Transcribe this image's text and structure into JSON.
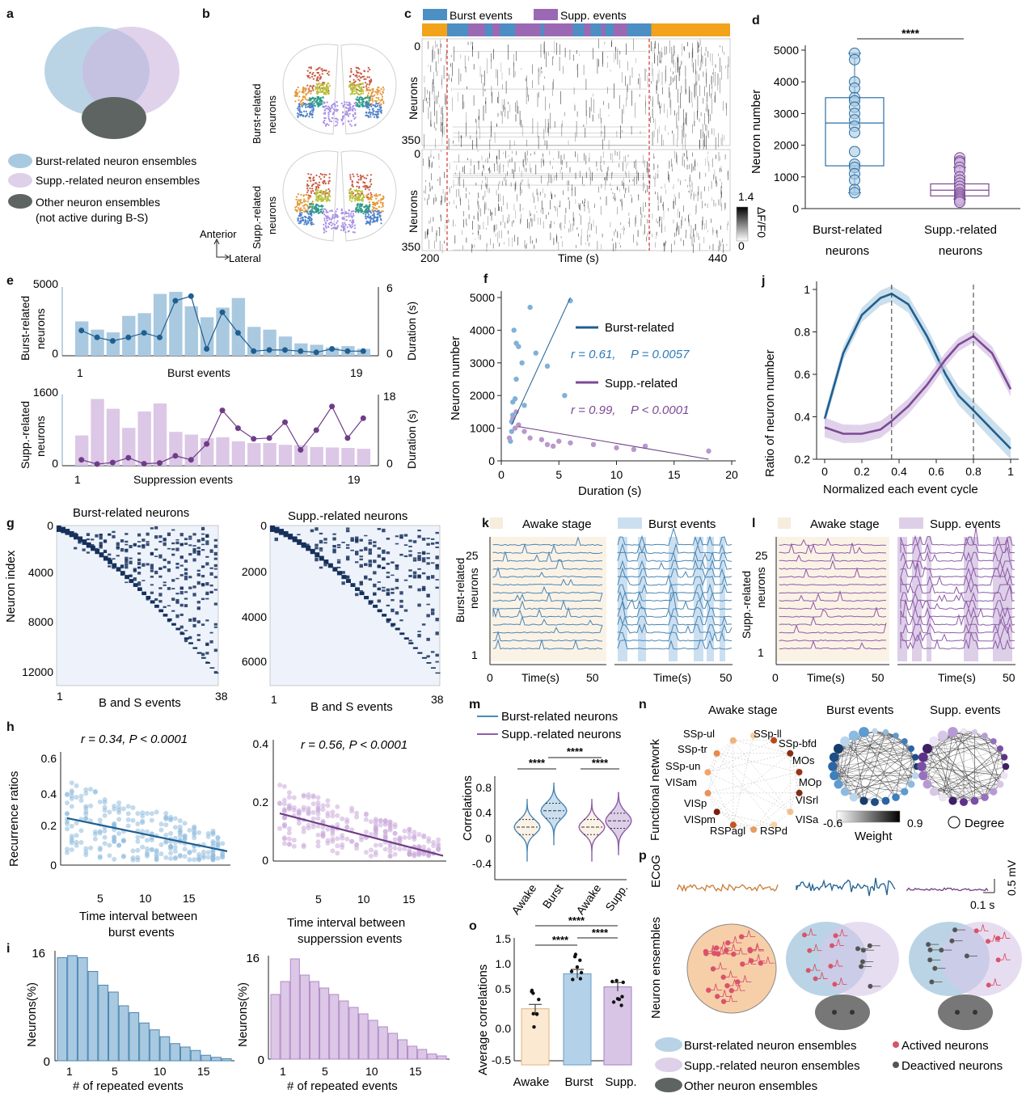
{
  "colors": {
    "burst": "#2c6fa6",
    "burst_light": "#a9c9e0",
    "supp": "#7b4a94",
    "supp_light": "#cdb4dd",
    "awake": "#f1ddc3",
    "awake_line": "#c97d35",
    "other": "#5d6462",
    "navy": "#14305a",
    "orange_bar": "#f2a31b",
    "red_dash": "#d6332b"
  },
  "panel_letters": [
    "a",
    "b",
    "c",
    "d",
    "e",
    "f",
    "g",
    "h",
    "i",
    "j",
    "k",
    "l",
    "m",
    "n",
    "o",
    "p"
  ],
  "a": {
    "legend": [
      {
        "label": "Burst-related neuron ensembles"
      },
      {
        "label": "Supp.-related neuron ensembles"
      },
      {
        "label": "Other neuron ensembles"
      },
      {
        "label": "(not active during B-S)"
      }
    ]
  },
  "b": {
    "row_labels": [
      "Burst-related",
      "neurons",
      "Supp.-related",
      "neurons"
    ],
    "axis_labels": [
      "Anterior",
      "Lateral"
    ]
  },
  "c": {
    "legend": [
      "Burst events",
      "Supp. events"
    ],
    "ylabel": "Neurons",
    "top_ticks": [
      "0",
      "350"
    ],
    "bottom_ticks": [
      "0",
      "350"
    ],
    "xlabel": "Time (s)",
    "xticks": [
      "200",
      "440"
    ],
    "colorbar_ticks": [
      "1.4",
      "0"
    ],
    "colorbar_label": "ΔF/F0"
  },
  "d": {
    "stars": "****",
    "ylabel": "Neuron number",
    "categories": [
      "Burst-related",
      "neurons",
      "Supp.-related",
      "neurons"
    ],
    "yticks": [
      "0",
      "1000",
      "2000",
      "3000",
      "4000",
      "5000"
    ]
  },
  "e": {
    "top_ylabel": [
      "Burst-related",
      "neurons"
    ],
    "top_left_ticks": [
      "5000",
      "0"
    ],
    "top_right_ticks": [
      "6",
      "0"
    ],
    "top_xlabel": "Burst events",
    "top_xticks": [
      "1",
      "19"
    ],
    "right_label": "Duration (s)",
    "bottom_ylabel": [
      "Supp.-related",
      "neurons"
    ],
    "bottom_left_ticks": [
      "1600",
      "0"
    ],
    "bottom_right_ticks": [
      "18",
      "0"
    ],
    "bottom_xlabel": "Suppression events",
    "bottom_xticks": [
      "1",
      "19"
    ]
  },
  "f": {
    "ylabel": "Neuron number",
    "xlabel": "Duration (s)",
    "yticks": [
      "0",
      "1000",
      "2000",
      "3000",
      "4000",
      "5000"
    ],
    "xticks": [
      "0",
      "5",
      "10",
      "15",
      "20"
    ],
    "legend_burst": "Burst-related",
    "legend_supp": "Supp.-related",
    "stat_burst_r": "r = 0.61,",
    "stat_burst_p": "P = 0.0057",
    "stat_supp_r": "r = 0.99,",
    "stat_supp_p": "P < 0.0001"
  },
  "g": {
    "left_title": "Burst-related neurons",
    "right_title": "Supp.-related neurons",
    "ylabel": "Neuron index",
    "left_yticks": [
      "0",
      "4000",
      "8000",
      "12000"
    ],
    "right_yticks": [
      "0",
      "2000",
      "4000",
      "6000"
    ],
    "xlabel": "B and S events",
    "xticks": [
      "1",
      "38"
    ]
  },
  "h": {
    "left_stat": "r = 0.34, P < 0.0001",
    "right_stat": "r = 0.56, P < 0.0001",
    "ylabel": "Recurrence ratios",
    "left_yticks": [
      "0",
      "0.2",
      "0.4",
      "0.6"
    ],
    "right_yticks": [
      "0",
      "0.2",
      "0.4"
    ],
    "xticks": [
      "5",
      "10",
      "15"
    ],
    "left_xlabel": [
      "Time interval between",
      "burst events"
    ],
    "right_xlabel": [
      "Time interval between",
      "supperssion events"
    ]
  },
  "i": {
    "ylabel": "Neurons(%)",
    "xlabel": "# of repeated events",
    "ytop": "16",
    "yzero": "0",
    "xticks": [
      "1",
      "5",
      "10",
      "15"
    ]
  },
  "j": {
    "ylabel": "Ratio of neuron number",
    "xlabel": "Normalized each event cycle",
    "yticks": [
      "0.2",
      "0.4",
      "0.6",
      "0.8",
      "1"
    ],
    "xticks": [
      "0",
      "0.2",
      "0.4",
      "0.6",
      "0.8",
      "1"
    ]
  },
  "k": {
    "legend": [
      "Awake stage",
      "Burst events"
    ],
    "ylabel": [
      "Burst-related",
      "neurons"
    ],
    "yticks": [
      "25",
      "1"
    ],
    "xlabel": "Time(s)",
    "xticks": [
      "0",
      "50"
    ]
  },
  "l": {
    "legend": [
      "Awake stage",
      "Supp. events"
    ],
    "ylabel": [
      "Supp.-related",
      "neurons"
    ],
    "yticks": [
      "25",
      "1"
    ],
    "xlabel": "Time(s)",
    "xticks": [
      "0",
      "50"
    ]
  },
  "m": {
    "legend": [
      "Burst-related neurons",
      "Supp.-related neurons"
    ],
    "ylabel": "Correlations",
    "yticks": [
      "0.8",
      "0.4",
      "0",
      "-0.4"
    ],
    "stars": [
      "****",
      "****",
      "****"
    ],
    "xticks": [
      "Awake",
      "Burst",
      "Awake",
      "Supp."
    ]
  },
  "n": {
    "side_label": "Functional network",
    "titles": [
      "Awake stage",
      "Burst events",
      "Supp. events"
    ],
    "regions": [
      "SSp-ul",
      "SSp-ll",
      "SSp-bfd",
      "MOs",
      "MOp",
      "VISrl",
      "VISa",
      "RSPd",
      "RSPagl",
      "VISpm",
      "VISp",
      "VISam",
      "SSp-un",
      "SSp-tr"
    ],
    "weight_ticks": [
      "-0.6",
      "0.9"
    ],
    "weight_label": "Weight",
    "degree_label": "Degree"
  },
  "o": {
    "ylabel": "Average correlations",
    "yticks": [
      "1.5",
      "1.0",
      "0.5",
      "0.0",
      "-0.5"
    ],
    "stars": [
      "****",
      "****",
      "****"
    ],
    "categories": [
      "Awake",
      "Burst",
      "Supp."
    ]
  },
  "p": {
    "side_label": [
      "Neuron ensembles",
      "ECoG"
    ],
    "scale_v": "0.5 mV",
    "scale_t": "0.1 s",
    "legend": [
      "Burst-related neuron ensembles",
      "Actived neurons",
      "Supp.-related neuron ensembles",
      "Deactived neurons",
      "Other neuron ensembles"
    ]
  },
  "chart_data": [
    {
      "panel": "d",
      "type": "box",
      "categories": [
        "Burst-related neurons",
        "Supp.-related neurons"
      ],
      "ylabel": "Neuron number",
      "ylim": [
        0,
        5000
      ],
      "box": [
        {
          "min": 500,
          "q1": 1350,
          "median": 2700,
          "q3": 3500,
          "max": 4900
        },
        {
          "min": 300,
          "q1": 400,
          "median": 580,
          "q3": 780,
          "max": 1300
        }
      ],
      "points": [
        [
          4900,
          4700,
          4000,
          3800,
          3500,
          3400,
          3200,
          3000,
          2800,
          2600,
          2400,
          1800,
          1400,
          1300,
          1100,
          900,
          600,
          500
        ],
        [
          1600,
          1500,
          1450,
          1300,
          1200,
          1000,
          900,
          800,
          700,
          600,
          500,
          450,
          400,
          350,
          300,
          300,
          250,
          200
        ]
      ]
    },
    {
      "panel": "e-top",
      "type": "bar+line",
      "categories": [
        "1",
        "2",
        "3",
        "4",
        "5",
        "6",
        "7",
        "8",
        "9",
        "10",
        "11",
        "12",
        "13",
        "14",
        "15",
        "16",
        "17",
        "18",
        "19"
      ],
      "bars": [
        2500,
        1900,
        1700,
        2900,
        3100,
        4500,
        4650,
        3600,
        2800,
        3500,
        4200,
        2100,
        1900,
        1400,
        900,
        800,
        600,
        700,
        500
      ],
      "line": [
        2.2,
        1.6,
        1.3,
        1.6,
        2.0,
        1.6,
        4.8,
        5.2,
        0.6,
        3.8,
        2.0,
        0.4,
        0.5,
        0.5,
        0.4,
        0.3,
        0.6,
        0.4,
        0.4
      ],
      "ylim_left": [
        0,
        5000
      ],
      "ylim_right": [
        0,
        6
      ]
    },
    {
      "panel": "e-bottom",
      "type": "bar+line",
      "categories": [
        "1",
        "2",
        "3",
        "4",
        "5",
        "6",
        "7",
        "8",
        "9",
        "10",
        "11",
        "12",
        "13",
        "14",
        "15",
        "16",
        "17",
        "18",
        "19"
      ],
      "bars": [
        680,
        1500,
        1280,
        850,
        1220,
        1400,
        760,
        700,
        620,
        640,
        550,
        510,
        510,
        470,
        460,
        420,
        410,
        400,
        380
      ],
      "line": [
        1.5,
        0.4,
        0.8,
        2.0,
        0.5,
        0.7,
        2.5,
        1.5,
        5.5,
        14.0,
        9.5,
        6.8,
        7.0,
        11.0,
        4.0,
        9.0,
        15.0,
        7.0,
        12.0
      ],
      "ylim_left": [
        0,
        1600
      ],
      "ylim_right": [
        0,
        18
      ]
    },
    {
      "panel": "f",
      "type": "scatter",
      "xlabel": "Duration (s)",
      "ylabel": "Neuron number",
      "xlim": [
        0,
        20
      ],
      "ylim": [
        0,
        5000
      ],
      "series": [
        {
          "name": "Burst-related",
          "x": [
            0.8,
            0.9,
            1.0,
            1.1,
            1.2,
            1.3,
            1.5,
            1.8,
            2.0,
            2.5,
            3.0,
            4.0,
            5.5,
            6.0,
            1.0,
            1.3,
            0.9
          ],
          "y": [
            600,
            900,
            1400,
            4000,
            1900,
            3600,
            3500,
            3000,
            1700,
            4700,
            3300,
            2900,
            2000,
            4900,
            1800,
            2500,
            1200
          ]
        },
        {
          "name": "Supp.-related",
          "x": [
            0.7,
            1.0,
            1.3,
            1.5,
            2.0,
            2.5,
            3.5,
            4.0,
            4.5,
            5.0,
            6.0,
            8.0,
            10.0,
            11.5,
            12.5,
            18.0,
            1.2
          ],
          "y": [
            700,
            1300,
            1500,
            1100,
            900,
            700,
            650,
            500,
            450,
            600,
            550,
            500,
            400,
            350,
            450,
            300,
            1000
          ]
        }
      ]
    },
    {
      "panel": "j",
      "type": "line",
      "xlabel": "Normalized each event cycle",
      "ylabel": "Ratio of neuron number",
      "xlim": [
        0,
        1
      ],
      "ylim": [
        0.2,
        1.0
      ],
      "x": [
        0,
        0.1,
        0.2,
        0.3,
        0.36,
        0.45,
        0.55,
        0.65,
        0.72,
        0.8,
        0.9,
        1.0
      ],
      "series": [
        {
          "name": "Burst-related",
          "values": [
            0.39,
            0.7,
            0.88,
            0.96,
            0.98,
            0.93,
            0.78,
            0.6,
            0.5,
            0.43,
            0.34,
            0.25
          ]
        },
        {
          "name": "Supp.-related",
          "values": [
            0.35,
            0.32,
            0.32,
            0.34,
            0.38,
            0.45,
            0.55,
            0.67,
            0.74,
            0.78,
            0.7,
            0.53
          ]
        }
      ]
    },
    {
      "panel": "o",
      "type": "bar",
      "categories": [
        "Awake",
        "Burst",
        "Supp."
      ],
      "values": [
        0.27,
        0.75,
        0.57
      ],
      "ylim": [
        -0.5,
        1.5
      ]
    },
    {
      "panel": "i-left",
      "type": "bar",
      "categories": [
        "1",
        "2",
        "3",
        "4",
        "5",
        "6",
        "7",
        "8",
        "9",
        "10",
        "11",
        "12",
        "13",
        "14",
        "15",
        "16",
        "17"
      ],
      "values": [
        15,
        15.3,
        15,
        13,
        11,
        10,
        8,
        7,
        5.5,
        4.5,
        3.5,
        2.5,
        2,
        1.5,
        0.8,
        0.5,
        0.3
      ],
      "ylim": [
        0,
        16
      ]
    },
    {
      "panel": "i-right",
      "type": "bar",
      "categories": [
        "1",
        "2",
        "3",
        "4",
        "5",
        "6",
        "7",
        "8",
        "9",
        "10",
        "11",
        "12",
        "13",
        "14",
        "15",
        "16",
        "17",
        "18"
      ],
      "values": [
        10,
        12,
        15.5,
        13,
        12,
        11,
        10,
        9,
        8,
        7,
        6,
        5,
        4,
        3,
        2,
        1.5,
        0.8,
        0.5
      ],
      "ylim": [
        0,
        16
      ]
    }
  ]
}
